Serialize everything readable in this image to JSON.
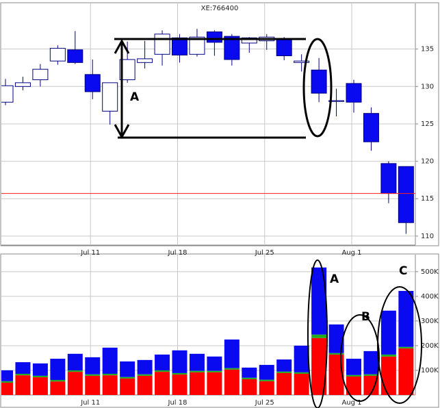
{
  "chart_data": [
    {
      "type": "candlestick",
      "title": "XE:766400",
      "categories": [
        null,
        null,
        null,
        null,
        null,
        "Jul 11",
        null,
        null,
        null,
        null,
        "Jul 18",
        null,
        null,
        null,
        null,
        "Jul 25",
        null,
        null,
        null,
        null,
        "Aug 1",
        null,
        null,
        null
      ],
      "open": [
        127.9,
        130.0,
        130.9,
        133.4,
        134.9,
        131.6,
        126.7,
        130.9,
        133.2,
        134.3,
        136.5,
        134.3,
        137.3,
        136.7,
        135.8,
        136.1,
        136.3,
        133.2,
        132.2,
        128.0,
        130.4,
        126.4,
        119.7,
        119.3
      ],
      "high": [
        131.0,
        131.3,
        133.0,
        135.5,
        137.4,
        133.6,
        130.5,
        136.0,
        136.1,
        137.5,
        137.0,
        137.7,
        137.5,
        137.0,
        136.6,
        137.0,
        136.6,
        134.3,
        133.8,
        129.7,
        130.9,
        127.2,
        120.0,
        119.3
      ],
      "low": [
        127.5,
        129.5,
        130.0,
        132.9,
        133.0,
        128.3,
        124.9,
        130.5,
        132.4,
        132.8,
        133.2,
        134.0,
        134.1,
        132.8,
        134.5,
        134.9,
        133.5,
        132.0,
        127.9,
        126.0,
        126.5,
        121.4,
        114.4,
        110.3
      ],
      "close": [
        130.1,
        130.5,
        132.3,
        135.1,
        133.2,
        129.3,
        130.5,
        133.6,
        133.7,
        137.0,
        134.2,
        136.6,
        135.9,
        133.6,
        136.5,
        136.6,
        134.1,
        133.4,
        129.1,
        128.1,
        127.9,
        122.6,
        115.7,
        111.8
      ],
      "up_color": "#ffffff",
      "down_color": "#0a0af0",
      "edge_color": "#000080",
      "reference_line": 115.7,
      "reference_color": "#ff2020",
      "ylim": [
        108.8,
        141.1
      ],
      "yticks": [
        110,
        115,
        120,
        125,
        130,
        135
      ],
      "grid": true,
      "annotations": [
        "A"
      ]
    },
    {
      "type": "stacked-bar",
      "categories": [
        null,
        null,
        null,
        null,
        null,
        "Jul 11",
        null,
        null,
        null,
        null,
        "Jul 18",
        null,
        null,
        null,
        null,
        "Jul 25",
        null,
        null,
        null,
        null,
        "Aug 1",
        null,
        null,
        null
      ],
      "series": [
        {
          "color": "#ff0000",
          "values": [
            50000,
            80000,
            72000,
            55000,
            94000,
            78000,
            80000,
            67000,
            78000,
            94000,
            83000,
            92000,
            92000,
            103000,
            64000,
            56000,
            89000,
            86000,
            231000,
            164000,
            75000,
            78000,
            156000,
            189000
          ]
        },
        {
          "color": "#22aa22",
          "values": [
            6000,
            6000,
            6000,
            6000,
            6000,
            6000,
            6000,
            6000,
            6000,
            6000,
            6000,
            6000,
            6000,
            6000,
            6000,
            6000,
            6000,
            6000,
            14000,
            6000,
            6000,
            6000,
            8000,
            6000
          ]
        },
        {
          "color": "#0a0af0",
          "values": [
            44000,
            47000,
            50000,
            86000,
            67000,
            69000,
            106000,
            63000,
            58000,
            64000,
            92000,
            69000,
            58000,
            116000,
            41000,
            60000,
            49000,
            108000,
            272000,
            116000,
            66000,
            94000,
            178000,
            227000
          ]
        }
      ],
      "ylim": [
        0,
        569000
      ],
      "yticks": [
        {
          "value": 100000,
          "label": "100K"
        },
        {
          "value": 200000,
          "label": "200K"
        },
        {
          "value": 300000,
          "label": "300K"
        },
        {
          "value": 400000,
          "label": "400K"
        },
        {
          "value": 500000,
          "label": "500K"
        }
      ],
      "grid": true,
      "annotations": [
        "A",
        "B",
        "C"
      ]
    }
  ]
}
